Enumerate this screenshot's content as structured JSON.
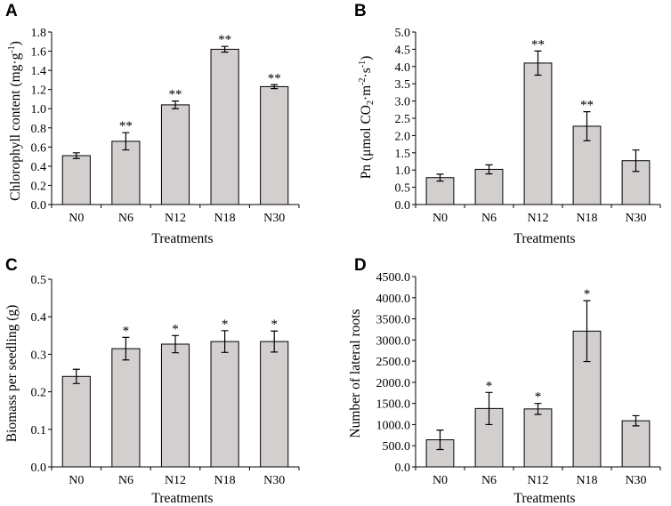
{
  "chart_data": [
    {
      "type": "bar",
      "panel": "A",
      "categories": [
        "N0",
        "N6",
        "N12",
        "N18",
        "N30"
      ],
      "values": [
        0.51,
        0.66,
        1.04,
        1.62,
        1.23
      ],
      "errors": [
        0.03,
        0.09,
        0.04,
        0.03,
        0.02
      ],
      "significance": [
        "",
        "**",
        "**",
        "**",
        "**"
      ],
      "xlabel": "Treatments",
      "ylabel_base": "Chlorophyll content (mg·g",
      "ylabel_sup": "-1",
      "ylabel_end": ")",
      "ylim": [
        0,
        1.8
      ],
      "yticks": [
        "0.0",
        "0.2",
        "0.4",
        "0.6",
        "0.8",
        "1.0",
        "1.2",
        "1.4",
        "1.6",
        "1.8"
      ]
    },
    {
      "type": "bar",
      "panel": "B",
      "categories": [
        "N0",
        "N6",
        "N12",
        "N18",
        "N30"
      ],
      "values": [
        0.78,
        1.02,
        4.1,
        2.27,
        1.27
      ],
      "errors": [
        0.1,
        0.13,
        0.35,
        0.42,
        0.31
      ],
      "significance": [
        "",
        "",
        "**",
        "**",
        ""
      ],
      "xlabel": "Treatments",
      "ylabel_parts": [
        "Pn (μmol CO",
        "2",
        "·m",
        "-2",
        "·s",
        "-1",
        ")"
      ],
      "ylim": [
        0,
        5.0
      ],
      "yticks": [
        "0.0",
        "0.5",
        "1.0",
        "1.5",
        "2.0",
        "2.5",
        "3.0",
        "3.5",
        "4.0",
        "4.5",
        "5.0"
      ]
    },
    {
      "type": "bar",
      "panel": "C",
      "categories": [
        "N0",
        "N6",
        "N12",
        "N18",
        "N30"
      ],
      "values": [
        0.241,
        0.315,
        0.327,
        0.334,
        0.334
      ],
      "errors": [
        0.019,
        0.03,
        0.023,
        0.029,
        0.028
      ],
      "significance": [
        "",
        "*",
        "*",
        "*",
        "*"
      ],
      "xlabel": "Treatments",
      "ylabel": "Biomass per seedling (g)",
      "ylim": [
        0,
        0.5
      ],
      "yticks": [
        "0.0",
        "0.1",
        "0.2",
        "0.3",
        "0.4",
        "0.5"
      ]
    },
    {
      "type": "bar",
      "panel": "D",
      "categories": [
        "N0",
        "N6",
        "N12",
        "N18",
        "N30"
      ],
      "values": [
        640,
        1380,
        1370,
        3210,
        1090
      ],
      "errors": [
        230,
        380,
        130,
        720,
        120
      ],
      "significance": [
        "",
        "*",
        "*",
        "*",
        ""
      ],
      "xlabel": "Treatments",
      "ylabel": "Number of lateral roots",
      "ylim": [
        0,
        4500
      ],
      "yticks": [
        "0.0",
        "500.0",
        "1000.0",
        "1500.0",
        "2000.0",
        "2500.0",
        "3000.0",
        "3500.0",
        "4000.0",
        "4500.0"
      ]
    }
  ]
}
